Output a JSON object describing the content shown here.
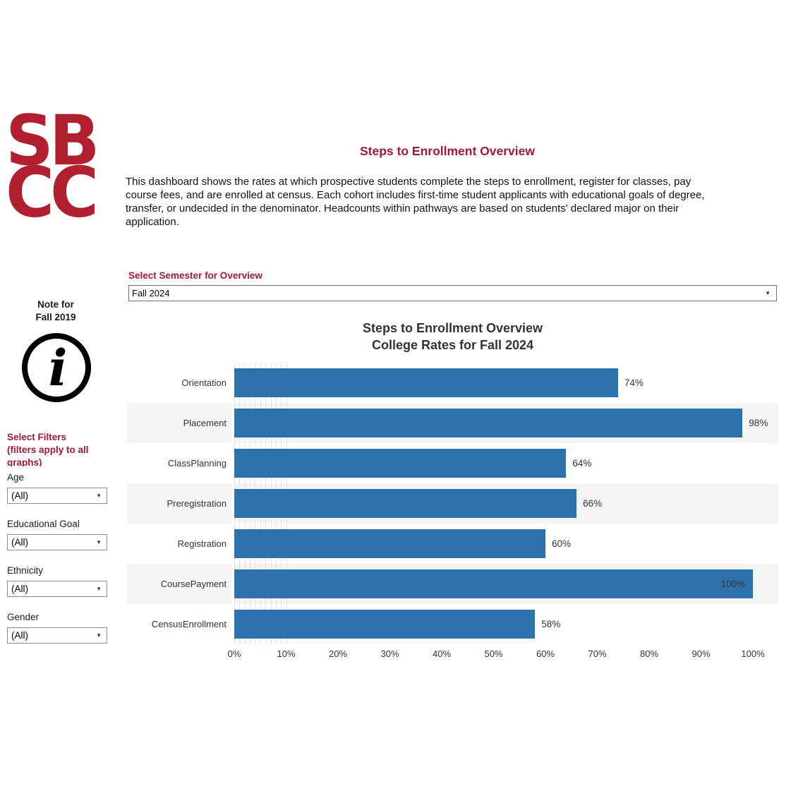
{
  "logo": {
    "line1": "SB",
    "line2": "CC",
    "color": "#B02030"
  },
  "header": {
    "title": "Steps to Enrollment Overview",
    "accent_color": "#9E1B32",
    "description": "This dashboard shows the rates at which prospective students complete the steps to enrollment, register for classes, pay\ncourse fees, and are enrolled at census. Each cohort includes first-time student applicants with educational goals of degree,\ntransfer, or undecided in the denominator. Headcounts within pathways are based on students' declared major on their\napplication."
  },
  "semester": {
    "label": "Select Semester for Overview",
    "value": "Fall 2024",
    "dropdown_icon": "▼"
  },
  "sidebar": {
    "note": "Note for\nFall 2019",
    "info_icon": "info-icon",
    "filters_header": "Select Filters\n(filters apply to all\ngraphs)",
    "dropdown_icon": "▼",
    "filters": [
      {
        "label": "Age",
        "value": "(All)"
      },
      {
        "label": "Educational Goal",
        "value": "(All)"
      },
      {
        "label": "Ethnicity",
        "value": "(All)"
      },
      {
        "label": "Gender",
        "value": "(All)"
      }
    ]
  },
  "chart_data": {
    "type": "bar",
    "orientation": "horizontal",
    "title": "Steps to Enrollment Overview",
    "subtitle": "College Rates for Fall 2024",
    "categories": [
      "Orientation",
      "Placement",
      "ClassPlanning",
      "Preregistration",
      "Registration",
      "CoursePayment",
      "CensusEnrollment"
    ],
    "values": [
      74,
      98,
      64,
      66,
      60,
      100,
      58
    ],
    "value_labels": [
      "74%",
      "98%",
      "64%",
      "66%",
      "60%",
      "100%",
      "58%"
    ],
    "xlabel": "",
    "ylabel": "",
    "xlim": [
      0,
      100
    ],
    "x_ticks": [
      "0%",
      "10%",
      "20%",
      "30%",
      "40%",
      "50%",
      "60%",
      "70%",
      "80%",
      "90%",
      "100%"
    ],
    "grid": true,
    "bar_color": "#2E72AC",
    "band_color": "#F4F4F4",
    "label_color": "#333333"
  }
}
